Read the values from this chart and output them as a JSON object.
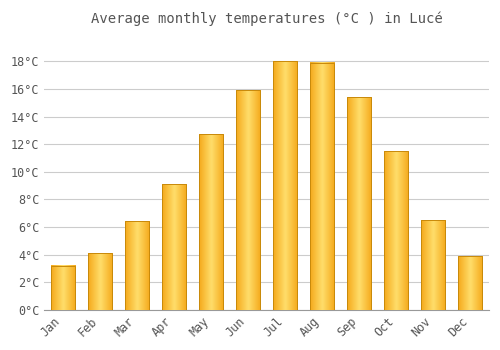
{
  "title": "Average monthly temperatures (°C ) in Lucé",
  "months": [
    "Jan",
    "Feb",
    "Mar",
    "Apr",
    "May",
    "Jun",
    "Jul",
    "Aug",
    "Sep",
    "Oct",
    "Nov",
    "Dec"
  ],
  "values": [
    3.2,
    4.1,
    6.4,
    9.1,
    12.7,
    15.9,
    18.0,
    17.9,
    15.4,
    11.5,
    6.5,
    3.9
  ],
  "bar_color_center": "#FFD966",
  "bar_color_edge": "#F5A800",
  "bar_border_color": "#C8890A",
  "background_color": "#FFFFFF",
  "grid_color": "#CCCCCC",
  "text_color": "#555555",
  "ylim": [
    0,
    20
  ],
  "yticks": [
    0,
    2,
    4,
    6,
    8,
    10,
    12,
    14,
    16,
    18
  ],
  "title_fontsize": 10,
  "tick_fontsize": 8.5,
  "font_family": "monospace"
}
